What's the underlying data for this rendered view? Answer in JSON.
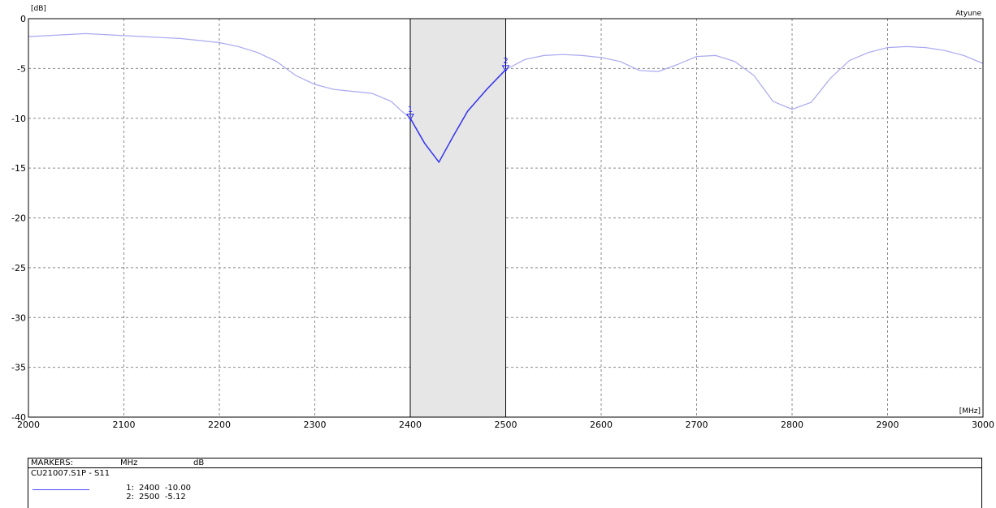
{
  "chart_data": {
    "type": "line",
    "title": "",
    "ylabel": "[dB]",
    "xlabel": "[MHz]",
    "corner_label": "Atyune",
    "xlim": [
      2000,
      3000
    ],
    "ylim": [
      -40,
      0
    ],
    "x_ticks": [
      2000,
      2100,
      2200,
      2300,
      2400,
      2500,
      2600,
      2700,
      2800,
      2900,
      3000
    ],
    "y_ticks": [
      0,
      -5,
      -10,
      -15,
      -20,
      -25,
      -30,
      -35,
      -40
    ],
    "grid": true,
    "highlight_band": [
      2400,
      2500
    ],
    "series": [
      {
        "name": "CU21007.S1P - S11",
        "color": "#a8a8f0",
        "band_color": "#3333ee",
        "x": [
          2000,
          2020,
          2040,
          2060,
          2080,
          2100,
          2120,
          2140,
          2160,
          2180,
          2200,
          2220,
          2240,
          2260,
          2280,
          2300,
          2320,
          2340,
          2360,
          2380,
          2390,
          2400,
          2415,
          2430,
          2445,
          2460,
          2480,
          2500,
          2520,
          2540,
          2560,
          2580,
          2600,
          2620,
          2640,
          2660,
          2680,
          2700,
          2720,
          2740,
          2760,
          2780,
          2800,
          2820,
          2840,
          2860,
          2880,
          2900,
          2920,
          2940,
          2960,
          2980,
          3000
        ],
        "y": [
          -1.8,
          -1.7,
          -1.6,
          -1.5,
          -1.6,
          -1.7,
          -1.8,
          -1.9,
          -2.0,
          -2.2,
          -2.4,
          -2.8,
          -3.4,
          -4.3,
          -5.7,
          -6.6,
          -7.1,
          -7.3,
          -7.5,
          -8.3,
          -9.2,
          -10.0,
          -12.5,
          -14.4,
          -11.8,
          -9.3,
          -7.1,
          -5.12,
          -4.1,
          -3.7,
          -3.6,
          -3.7,
          -3.9,
          -4.3,
          -5.2,
          -5.3,
          -4.6,
          -3.8,
          -3.7,
          -4.3,
          -5.7,
          -8.3,
          -9.1,
          -8.4,
          -6.0,
          -4.2,
          -3.4,
          -2.9,
          -2.8,
          -2.9,
          -3.2,
          -3.7,
          -4.5
        ]
      }
    ],
    "markers": [
      {
        "id": "1",
        "x": 2400,
        "y": -10.0
      },
      {
        "id": "2",
        "x": 2500,
        "y": -5.12
      }
    ]
  },
  "marker_table": {
    "header_title": "MARKERS:",
    "header_x_unit": "MHz",
    "header_y_unit": "dB",
    "trace_name": "CU21007.S1P - S11",
    "rows": [
      {
        "index": "1:",
        "x": "2400",
        "y": "-10.00"
      },
      {
        "index": "2:",
        "x": "2500",
        "y": "-5.12"
      }
    ]
  }
}
